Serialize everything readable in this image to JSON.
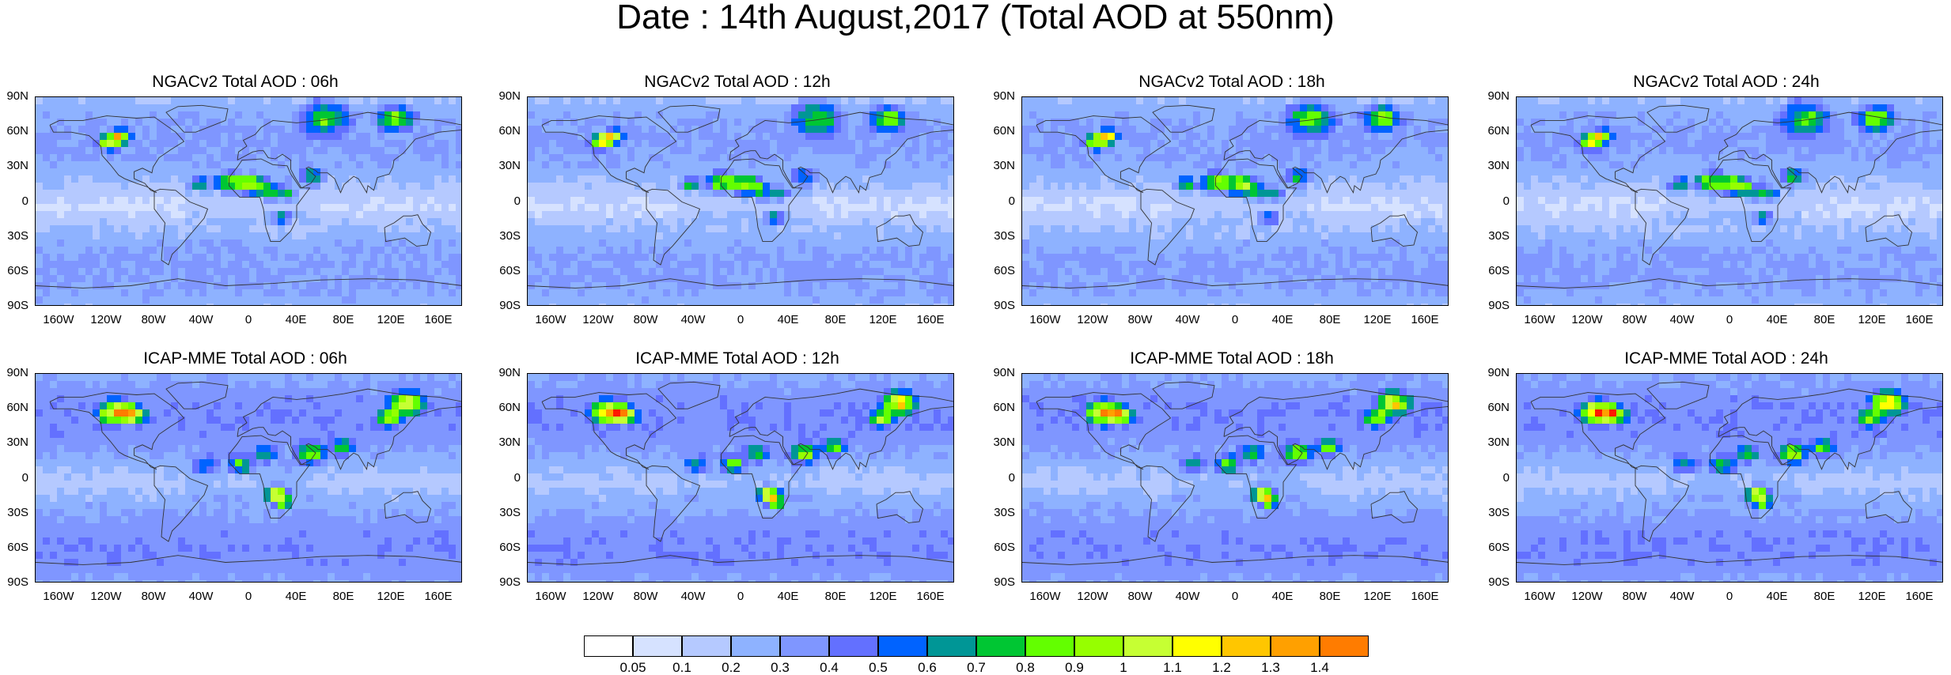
{
  "title": "Date : 14th August,2017 (Total AOD at 550nm)",
  "panels": [
    {
      "title": "NGACv2 Total AOD : 06h",
      "model": "NGACv2",
      "hour": "06h"
    },
    {
      "title": "NGACv2 Total AOD : 12h",
      "model": "NGACv2",
      "hour": "12h"
    },
    {
      "title": "NGACv2 Total AOD : 18h",
      "model": "NGACv2",
      "hour": "18h"
    },
    {
      "title": "NGACv2 Total AOD : 24h",
      "model": "NGACv2",
      "hour": "24h"
    },
    {
      "title": "ICAP-MME Total AOD : 06h",
      "model": "ICAP-MME",
      "hour": "06h"
    },
    {
      "title": "ICAP-MME Total AOD : 12h",
      "model": "ICAP-MME",
      "hour": "12h"
    },
    {
      "title": "ICAP-MME Total AOD : 18h",
      "model": "ICAP-MME",
      "hour": "18h"
    },
    {
      "title": "ICAP-MME Total AOD : 24h",
      "model": "ICAP-MME",
      "hour": "24h"
    }
  ],
  "lat_labels": [
    "90N",
    "60N",
    "30N",
    "0",
    "30S",
    "60S",
    "90S"
  ],
  "lon_labels": [
    "160W",
    "120W",
    "80W",
    "40W",
    "0",
    "40E",
    "80E",
    "120E",
    "160E"
  ],
  "colorbar": {
    "labels": [
      "0.05",
      "0.1",
      "0.2",
      "0.3",
      "0.4",
      "0.5",
      "0.6",
      "0.7",
      "0.8",
      "0.9",
      "1",
      "1.1",
      "1.2",
      "1.3",
      "1.4"
    ],
    "colors": [
      "#ffffff",
      "#d6e2ff",
      "#b5c9ff",
      "#8eb2ff",
      "#7f96ff",
      "#6370ff",
      "#0063ff",
      "#009696",
      "#00c633",
      "#63ff00",
      "#96ff00",
      "#c6ff33",
      "#ffff00",
      "#ffc600",
      "#ffa000",
      "#ff7c00",
      "#ff1900"
    ]
  }
}
